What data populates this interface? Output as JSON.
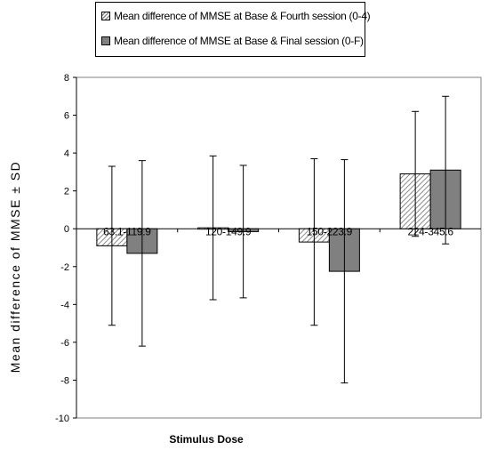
{
  "chart_data": {
    "type": "bar",
    "title": "",
    "xlabel": "Stimulus Dose",
    "ylabel": "Mean difference of MMSE ± SD",
    "ylim": [
      -10,
      8
    ],
    "yticks": [
      -10,
      -8,
      -6,
      -4,
      -2,
      0,
      2,
      4,
      6,
      8
    ],
    "grid": false,
    "legend_position": "top",
    "categories": [
      "63.1-119.9",
      "120-149.9",
      "150-223.9",
      "224-345.6"
    ],
    "series": [
      {
        "name": "Mean difference of MMSE at Base & Fourth session (0-4)",
        "pattern": "hatched",
        "color": "#ffffff",
        "values": [
          -0.9,
          0.05,
          -0.7,
          2.9
        ],
        "sd": [
          4.2,
          3.8,
          4.4,
          3.3
        ]
      },
      {
        "name": "Mean difference of MMSE at Base & Final session (0-F)",
        "pattern": "solid",
        "color": "#808080",
        "values": [
          -1.3,
          -0.15,
          -2.25,
          3.1
        ],
        "sd": [
          4.9,
          3.5,
          5.9,
          3.9
        ]
      }
    ]
  }
}
